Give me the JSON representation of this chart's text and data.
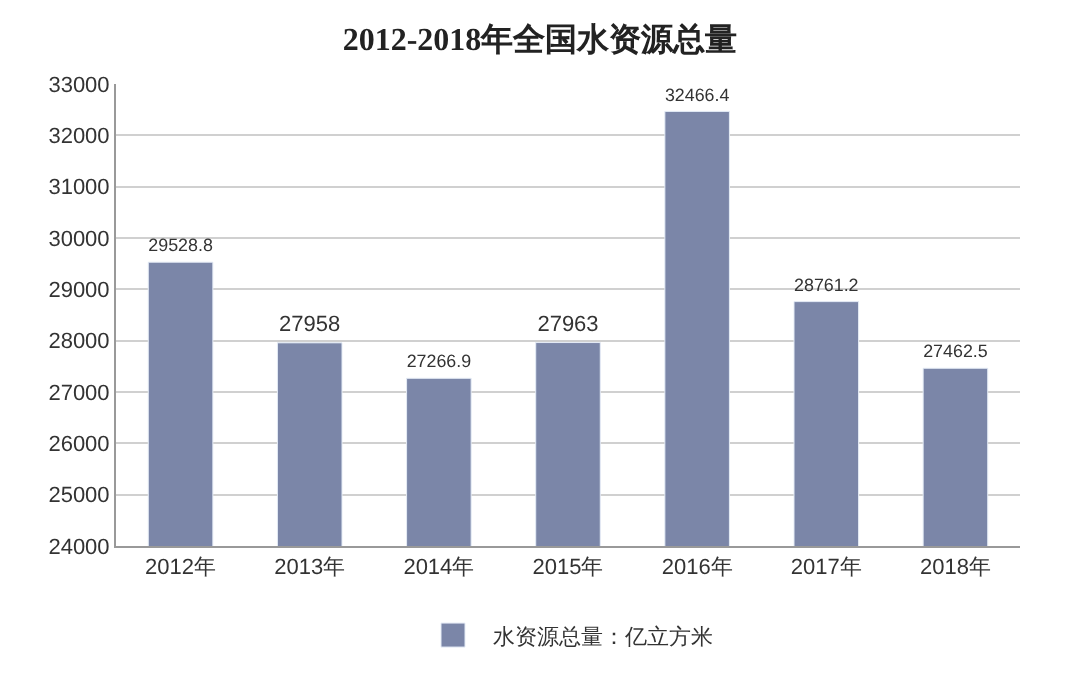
{
  "chart_data": {
    "type": "bar",
    "title": "2012-2018年全国水资源总量",
    "categories": [
      "2012年",
      "2013年",
      "2014年",
      "2015年",
      "2016年",
      "2017年",
      "2018年"
    ],
    "series": [
      {
        "name": "水资源总量：亿立方米",
        "color": "#7b86a8",
        "values": [
          29528.8,
          27958,
          27266.9,
          27963,
          32466.4,
          28761.2,
          27462.5
        ]
      }
    ],
    "ylim": [
      24000,
      33000
    ],
    "yticks": [
      24000,
      25000,
      26000,
      27000,
      28000,
      29000,
      30000,
      31000,
      32000,
      33000
    ],
    "grid": "y",
    "legend": "bottom",
    "data_labels": true
  }
}
